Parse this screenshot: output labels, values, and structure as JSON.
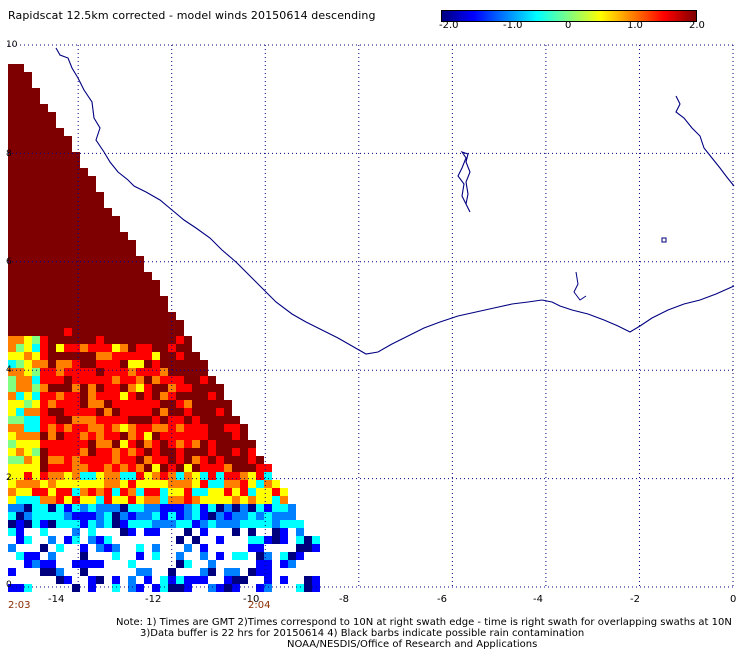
{
  "title": "Rapidscat 12.5km corrected - model winds 20150614 descending",
  "colorbar": {
    "ticks": [
      "-2.0",
      "-1.0",
      "0",
      "1.0",
      "2.0"
    ],
    "min": -2.0,
    "max": 2.0,
    "colors": [
      "#00007f",
      "#0000ff",
      "#0080ff",
      "#00ffff",
      "#80ff80",
      "#ffff00",
      "#ff8000",
      "#ff0000",
      "#7f0000"
    ]
  },
  "axes": {
    "lon_range": [
      -15.5,
      0
    ],
    "lat_range": [
      0,
      10
    ],
    "x_ticks": [
      "-14",
      "-12",
      "-10",
      "-8",
      "-6",
      "-4",
      "-2",
      "0"
    ],
    "y_ticks": [
      "10",
      "8",
      "6",
      "4",
      "2",
      "0"
    ]
  },
  "times": {
    "left": "2:03",
    "right": "2:04"
  },
  "notes": {
    "line1": "Note: 1) Times are GMT 2)Times correspond to 10N at right swath edge - time is right swath for overlapping swaths at 10N",
    "line2": "3)Data buffer is 22 hrs for 20150614 4) Black barbs indicate possible rain contamination",
    "line3": "NOAA/NESDIS/Office of Research and Applications"
  },
  "colors": {
    "coastline": "#000080",
    "grid": "#000080",
    "time_label": "#8b2a00"
  }
}
